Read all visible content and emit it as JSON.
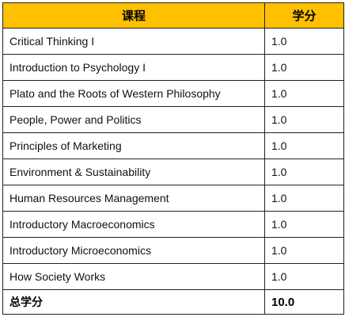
{
  "table": {
    "headers": {
      "course": "课程",
      "credits": "学分"
    },
    "rows": [
      {
        "course": "Critical Thinking I",
        "credits": "1.0"
      },
      {
        "course": "Introduction to Psychology I",
        "credits": "1.0"
      },
      {
        "course": "Plato and the Roots of Western Philosophy",
        "credits": "1.0"
      },
      {
        "course": "People, Power and Politics",
        "credits": "1.0"
      },
      {
        "course": "Principles of Marketing",
        "credits": "1.0"
      },
      {
        "course": "Environment & Sustainability",
        "credits": "1.0"
      },
      {
        "course": "Human Resources Management",
        "credits": "1.0"
      },
      {
        "course": "Introductory Macroeconomics",
        "credits": "1.0"
      },
      {
        "course": "Introductory Microeconomics",
        "credits": "1.0"
      },
      {
        "course": "How Society Works",
        "credits": "1.0"
      }
    ],
    "total": {
      "label": "总学分",
      "value": "10.0"
    }
  },
  "colors": {
    "header_background": "#ffc000",
    "border": "#222222"
  }
}
